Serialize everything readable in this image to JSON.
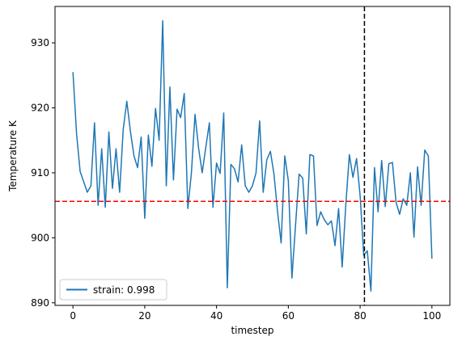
{
  "chart_data": {
    "type": "line",
    "xlabel": "timestep",
    "ylabel": "Temperature K",
    "xlim": [
      -5,
      105
    ],
    "ylim": [
      889.6,
      935.6
    ],
    "xticks": [
      0,
      20,
      40,
      60,
      80,
      100
    ],
    "yticks": [
      890,
      900,
      910,
      920,
      930
    ],
    "grid": false,
    "legend_position": "lower-left",
    "series": [
      {
        "name": "strain: 0.998",
        "color": "#1f77b4",
        "x": [
          0,
          1,
          2,
          3,
          4,
          5,
          6,
          7,
          8,
          9,
          10,
          11,
          12,
          13,
          14,
          15,
          16,
          17,
          18,
          19,
          20,
          21,
          22,
          23,
          24,
          25,
          26,
          27,
          28,
          29,
          30,
          31,
          32,
          33,
          34,
          35,
          36,
          37,
          38,
          39,
          40,
          41,
          42,
          43,
          44,
          45,
          46,
          47,
          48,
          49,
          50,
          51,
          52,
          53,
          54,
          55,
          56,
          57,
          58,
          59,
          60,
          61,
          62,
          63,
          64,
          65,
          66,
          67,
          68,
          69,
          70,
          71,
          72,
          73,
          74,
          75,
          76,
          77,
          78,
          79,
          80,
          81,
          82,
          83,
          84,
          85,
          86,
          87,
          88,
          89,
          90,
          91,
          92,
          93,
          94,
          95,
          96,
          97,
          98,
          99,
          100
        ],
        "y": [
          925.5,
          916.0,
          910.2,
          908.6,
          907.0,
          908.0,
          917.7,
          905.0,
          913.7,
          904.7,
          916.3,
          907.6,
          913.7,
          907.0,
          916.7,
          921.0,
          916.4,
          912.6,
          910.8,
          915.5,
          903.0,
          915.8,
          911.0,
          919.9,
          915.0,
          933.4,
          908.0,
          923.2,
          908.9,
          919.8,
          918.5,
          922.2,
          904.5,
          910.0,
          919.0,
          913.8,
          910.0,
          913.9,
          917.7,
          904.7,
          911.5,
          909.9,
          919.2,
          892.3,
          911.3,
          910.6,
          908.6,
          914.3,
          908.0,
          907.0,
          908.0,
          910.0,
          918.0,
          907.0,
          912.0,
          913.3,
          909.8,
          904.0,
          899.2,
          912.6,
          908.8,
          893.8,
          901.9,
          909.8,
          909.2,
          900.6,
          912.8,
          912.6,
          901.9,
          904.0,
          902.8,
          902.0,
          902.6,
          898.8,
          904.5,
          895.5,
          905.0,
          912.8,
          909.3,
          912.2,
          906.5,
          897.3,
          898.0,
          891.8,
          910.8,
          904.0,
          911.9,
          904.8,
          911.4,
          911.6,
          905.5,
          903.6,
          906.0,
          905.0,
          910.0,
          900.1,
          910.9,
          905.0,
          913.5,
          912.6,
          896.8
        ]
      }
    ],
    "hlines": [
      {
        "y": 905.6,
        "color": "#ff0000",
        "style": "dashed"
      }
    ],
    "vlines": [
      {
        "x": 81.2,
        "color": "#000000",
        "style": "dashed"
      }
    ]
  }
}
